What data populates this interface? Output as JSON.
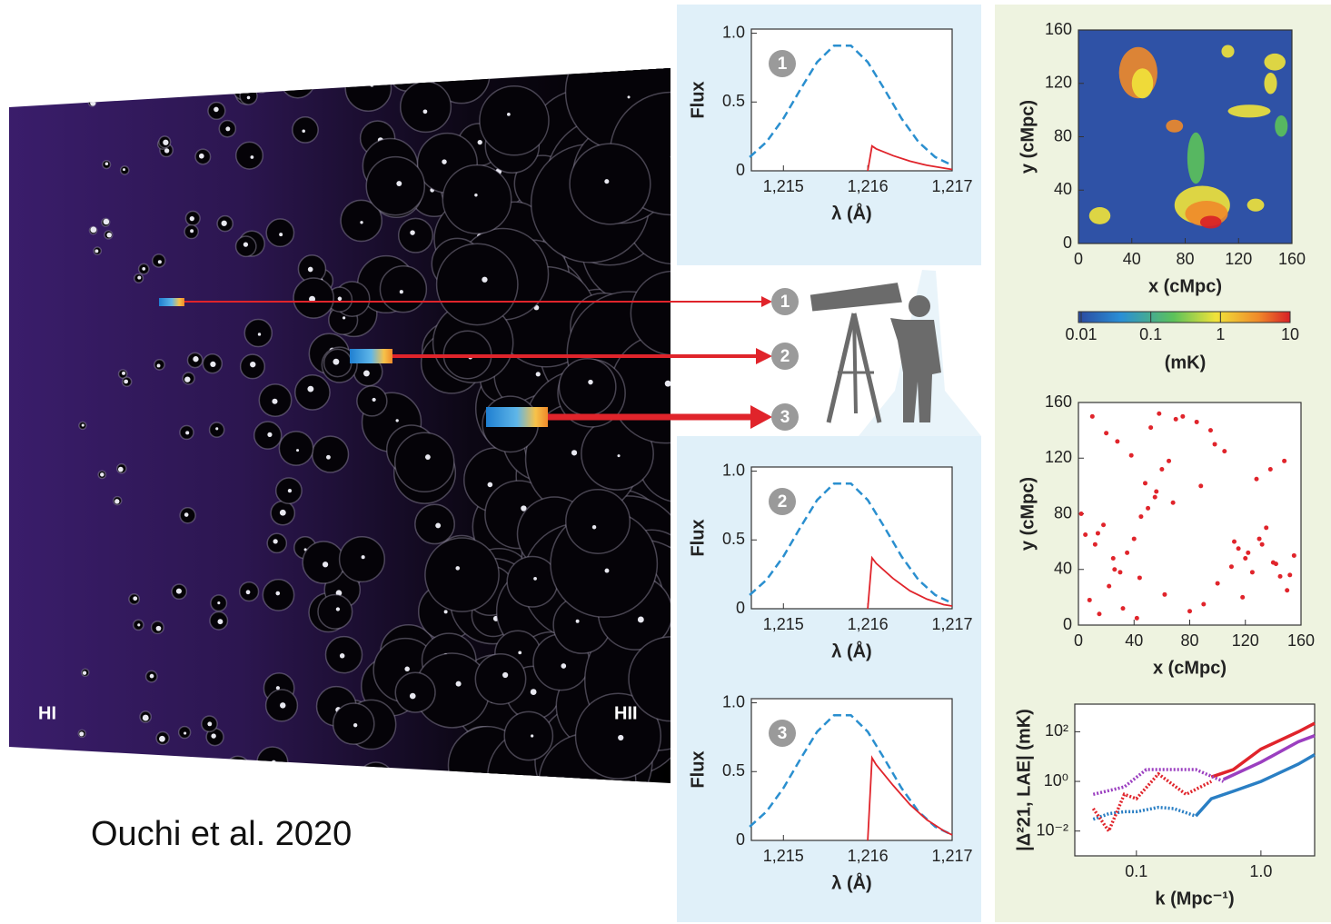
{
  "caption": "Ouchi et al. 2020",
  "illustration": {
    "left_label": "HI",
    "right_label": "HII",
    "markers": [
      "1",
      "2",
      "3"
    ]
  },
  "chart_data": [
    {
      "type": "line",
      "badge": "1",
      "xlabel": "λ (Å)",
      "ylabel": "Flux",
      "xlim": [
        1214.62,
        1217
      ],
      "xticks": [
        {
          "value": 1215,
          "label": "1,215"
        },
        {
          "value": 1216,
          "label": "1,216"
        },
        {
          "value": 1217,
          "label": "1,217"
        }
      ],
      "ylim": [
        0,
        1.03
      ],
      "yticks": [
        0,
        0.5,
        {
          "value": 1,
          "label": "1.0"
        }
      ],
      "series": [
        {
          "color": "#2a8fcf",
          "dash": true,
          "x": [
            1214.6,
            1214.8,
            1215.0,
            1215.2,
            1215.4,
            1215.6,
            1215.8,
            1216.0,
            1216.2,
            1216.4,
            1216.6,
            1216.8,
            1217.0
          ],
          "values": [
            0.1,
            0.21,
            0.38,
            0.59,
            0.79,
            0.91,
            0.91,
            0.79,
            0.59,
            0.38,
            0.21,
            0.1,
            0.04
          ]
        },
        {
          "color": "#e0242b",
          "dash": false,
          "x": [
            1216.0,
            1216.05,
            1216.1,
            1216.3,
            1216.5,
            1216.7,
            1216.9,
            1217.0
          ],
          "values": [
            0,
            0.18,
            0.16,
            0.11,
            0.07,
            0.04,
            0.02,
            0.01
          ]
        }
      ]
    },
    {
      "type": "line",
      "badge": "2",
      "xlabel": "λ (Å)",
      "ylabel": "Flux",
      "xlim": [
        1214.62,
        1217
      ],
      "xticks": [
        {
          "value": 1215,
          "label": "1,215"
        },
        {
          "value": 1216,
          "label": "1,216"
        },
        {
          "value": 1217,
          "label": "1,217"
        }
      ],
      "ylim": [
        0,
        1.03
      ],
      "yticks": [
        0,
        0.5,
        {
          "value": 1,
          "label": "1.0"
        }
      ],
      "series": [
        {
          "color": "#2a8fcf",
          "dash": true,
          "x": [
            1214.6,
            1214.8,
            1215.0,
            1215.2,
            1215.4,
            1215.6,
            1215.8,
            1216.0,
            1216.2,
            1216.4,
            1216.6,
            1216.8,
            1217.0
          ],
          "values": [
            0.1,
            0.21,
            0.38,
            0.59,
            0.79,
            0.91,
            0.91,
            0.79,
            0.59,
            0.38,
            0.21,
            0.1,
            0.04
          ]
        },
        {
          "color": "#e0242b",
          "dash": false,
          "x": [
            1216.0,
            1216.05,
            1216.1,
            1216.3,
            1216.5,
            1216.7,
            1216.9,
            1217.0
          ],
          "values": [
            0,
            0.37,
            0.33,
            0.22,
            0.13,
            0.07,
            0.03,
            0.02
          ]
        }
      ]
    },
    {
      "type": "line",
      "badge": "3",
      "xlabel": "λ (Å)",
      "ylabel": "Flux",
      "xlim": [
        1214.62,
        1217
      ],
      "xticks": [
        {
          "value": 1215,
          "label": "1,215"
        },
        {
          "value": 1216,
          "label": "1,216"
        },
        {
          "value": 1217,
          "label": "1,217"
        }
      ],
      "ylim": [
        0,
        1.03
      ],
      "yticks": [
        0,
        0.5,
        {
          "value": 1,
          "label": "1.0"
        }
      ],
      "series": [
        {
          "color": "#2a8fcf",
          "dash": true,
          "x": [
            1214.6,
            1214.8,
            1215.0,
            1215.2,
            1215.4,
            1215.6,
            1215.8,
            1216.0,
            1216.2,
            1216.4,
            1216.6,
            1216.8,
            1217.0
          ],
          "values": [
            0.1,
            0.21,
            0.38,
            0.59,
            0.79,
            0.91,
            0.91,
            0.79,
            0.59,
            0.38,
            0.21,
            0.1,
            0.04
          ]
        },
        {
          "color": "#e0242b",
          "dash": false,
          "x": [
            1216.0,
            1216.05,
            1216.1,
            1216.3,
            1216.5,
            1216.7,
            1216.9,
            1217.0
          ],
          "values": [
            0,
            0.6,
            0.55,
            0.4,
            0.26,
            0.15,
            0.07,
            0.04
          ]
        }
      ]
    },
    {
      "type": "heatmap",
      "xlabel": "x (cMpc)",
      "ylabel": "y (cMpc)",
      "xlim": [
        0,
        160
      ],
      "xticks": [
        0,
        40,
        80,
        120,
        160
      ],
      "ylim": [
        0,
        160
      ],
      "yticks": [
        0,
        40,
        80,
        120,
        160
      ],
      "colorbar_label": "(mK)",
      "clim": [
        0.01,
        10
      ],
      "cticks": [
        0.01,
        0.1,
        1,
        10
      ],
      "clog": true
    },
    {
      "type": "scatter",
      "xlabel": "x (cMpc)",
      "ylabel": "y (cMpc)",
      "color": "#e0242b",
      "xlim": [
        0,
        160
      ],
      "xticks": [
        0,
        40,
        80,
        120,
        160
      ],
      "ylim": [
        0,
        160
      ],
      "yticks": [
        0,
        40,
        80,
        120,
        160
      ],
      "x": [
        5,
        12,
        18,
        25,
        30,
        8,
        15,
        22,
        35,
        40,
        45,
        50,
        55,
        48,
        60,
        65,
        70,
        52,
        58,
        20,
        10,
        28,
        38,
        75,
        85,
        95,
        100,
        110,
        115,
        120,
        125,
        130,
        135,
        140,
        145,
        150,
        155,
        128,
        138,
        148,
        105,
        90,
        80,
        62,
        42,
        32,
        2,
        14,
        26,
        44,
        56,
        68,
        112,
        122,
        132,
        142,
        152,
        118,
        98,
        88
      ],
      "values": [
        65,
        58,
        72,
        48,
        38,
        18,
        8,
        28,
        52,
        62,
        78,
        84,
        92,
        102,
        112,
        118,
        148,
        142,
        152,
        138,
        150,
        132,
        122,
        150,
        146,
        140,
        30,
        42,
        55,
        48,
        38,
        62,
        70,
        45,
        35,
        25,
        50,
        105,
        112,
        118,
        125,
        15,
        10,
        22,
        5,
        12,
        80,
        66,
        40,
        34,
        96,
        88,
        60,
        52,
        58,
        44,
        36,
        20,
        130,
        100
      ]
    },
    {
      "type": "line",
      "xlabel": "k (Mpc⁻¹)",
      "ylabel": "|Δ²21, LAE| (mK)",
      "xlog": true,
      "ylog": true,
      "xlim": [
        0.032,
        2.7
      ],
      "xticks": [
        0.1,
        {
          "value": 1,
          "label": "1.0"
        }
      ],
      "ylim": [
        0.001,
        1300
      ],
      "yticks": [
        {
          "value": 0.01,
          "label": "10⁻²"
        },
        {
          "value": 1,
          "label": "10⁰"
        },
        {
          "value": 100,
          "label": "10²"
        }
      ],
      "series": [
        {
          "color": "#2a7fc4",
          "dash": true,
          "x": [
            0.045,
            0.06,
            0.08,
            0.1,
            0.15,
            0.2,
            0.3
          ],
          "values": [
            0.03,
            0.05,
            0.06,
            0.06,
            0.09,
            0.08,
            0.04
          ]
        },
        {
          "color": "#2a7fc4",
          "dash": false,
          "x": [
            0.3,
            0.4,
            0.6,
            1,
            2,
            2.7
          ],
          "values": [
            0.04,
            0.2,
            0.4,
            1,
            5,
            12
          ]
        },
        {
          "color": "#e0242b",
          "dash": true,
          "x": [
            0.045,
            0.06,
            0.08,
            0.1,
            0.15,
            0.25,
            0.4
          ],
          "values": [
            0.08,
            0.01,
            0.3,
            0.2,
            2,
            0.3,
            1
          ]
        },
        {
          "color": "#e0242b",
          "dash": false,
          "x": [
            0.4,
            0.6,
            1,
            2,
            2.7
          ],
          "values": [
            1.5,
            3,
            20,
            100,
            220
          ]
        },
        {
          "color": "#9b3fc0",
          "dash": true,
          "x": [
            0.045,
            0.08,
            0.12,
            0.2,
            0.3,
            0.5
          ],
          "values": [
            0.3,
            0.6,
            3,
            3,
            3,
            1
          ]
        },
        {
          "color": "#9b3fc0",
          "dash": false,
          "x": [
            0.5,
            1,
            2,
            2.7
          ],
          "values": [
            1.2,
            6,
            40,
            70
          ]
        }
      ]
    }
  ]
}
